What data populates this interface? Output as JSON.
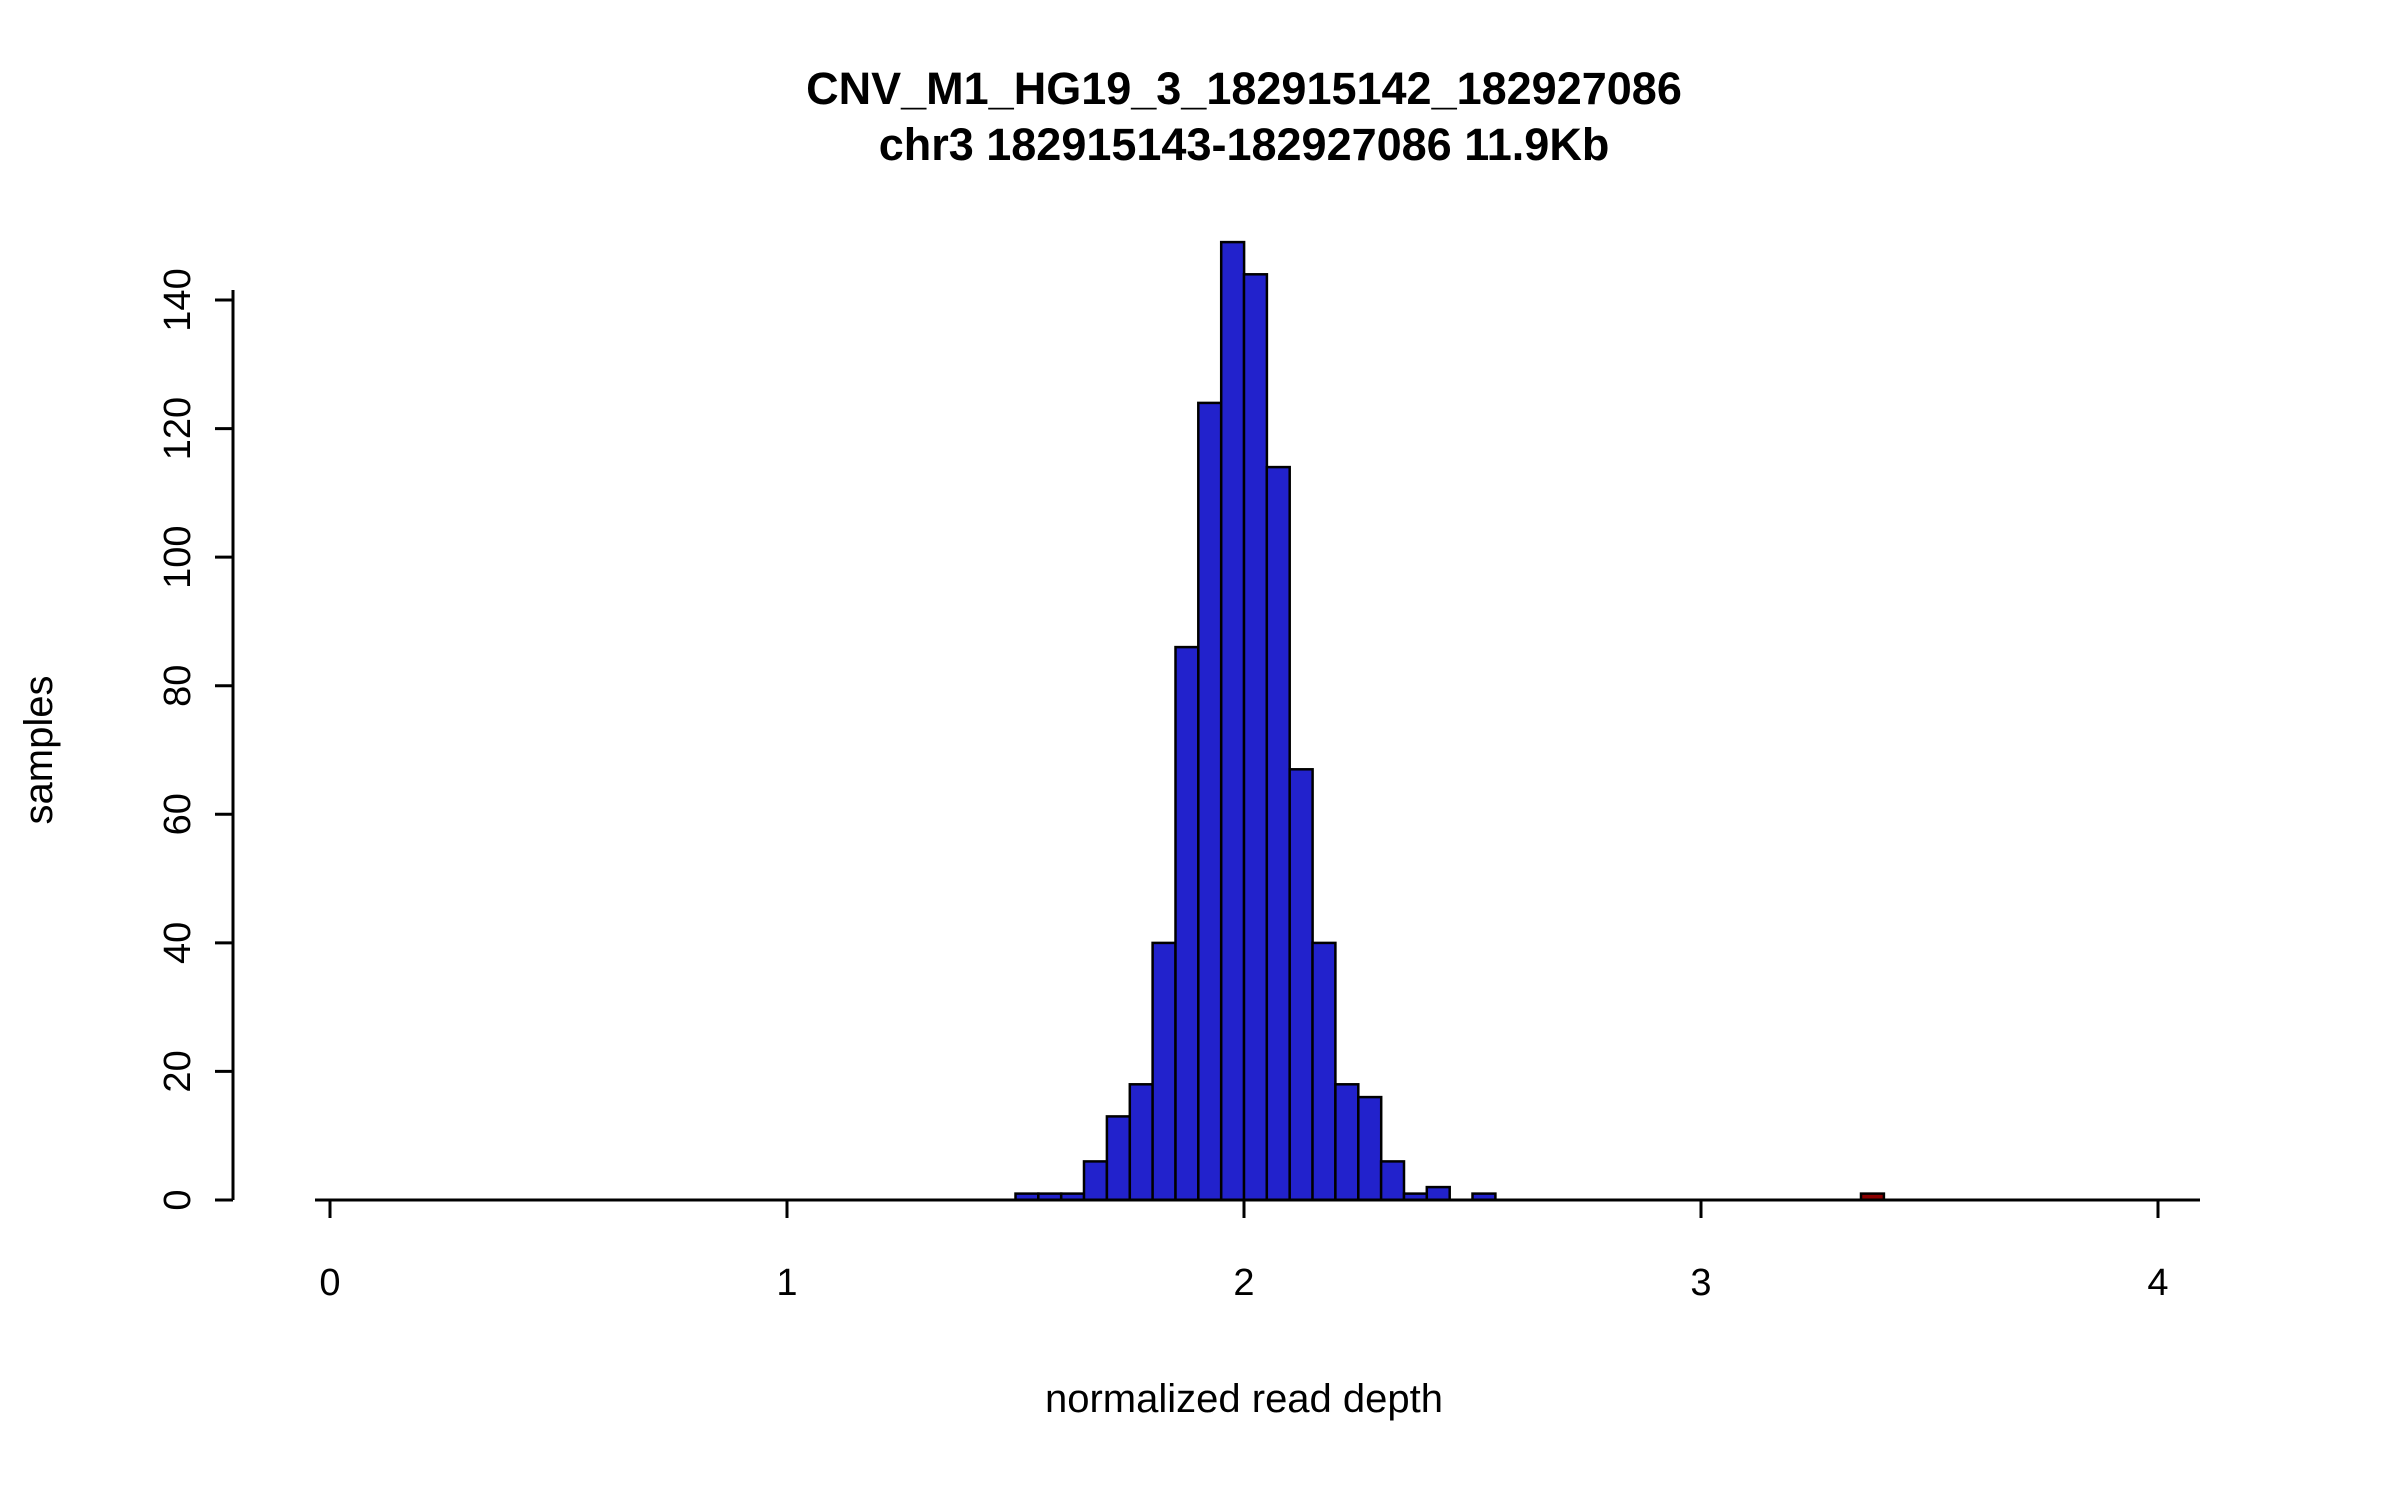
{
  "chart_data": {
    "type": "bar",
    "subtype": "histogram",
    "title": "CNV_M1_HG19_3_182915142_182927086",
    "subtitle": "chr3 182915143-182927086 11.9Kb",
    "xlabel": "normalized read depth",
    "ylabel": "samples",
    "xlim": [
      0,
      4.1
    ],
    "ylim": [
      0,
      150
    ],
    "x_ticks": [
      0,
      1,
      2,
      3,
      4
    ],
    "y_ticks": [
      0,
      20,
      40,
      60,
      80,
      100,
      120,
      140
    ],
    "bin_width": 0.05,
    "grid": false,
    "legend": "none",
    "colors": {
      "bar_fill": "#2222cc",
      "outlier_fill": "#8b0000",
      "bar_stroke": "#000000",
      "background": "#ffffff"
    },
    "bins": [
      {
        "start": 1.5,
        "count": 1,
        "series": "normal"
      },
      {
        "start": 1.55,
        "count": 1,
        "series": "normal"
      },
      {
        "start": 1.6,
        "count": 1,
        "series": "normal"
      },
      {
        "start": 1.65,
        "count": 6,
        "series": "normal"
      },
      {
        "start": 1.7,
        "count": 13,
        "series": "normal"
      },
      {
        "start": 1.75,
        "count": 18,
        "series": "normal"
      },
      {
        "start": 1.8,
        "count": 40,
        "series": "normal"
      },
      {
        "start": 1.85,
        "count": 86,
        "series": "normal"
      },
      {
        "start": 1.9,
        "count": 124,
        "series": "normal"
      },
      {
        "start": 1.95,
        "count": 149,
        "series": "normal"
      },
      {
        "start": 2.0,
        "count": 144,
        "series": "normal"
      },
      {
        "start": 2.05,
        "count": 114,
        "series": "normal"
      },
      {
        "start": 2.1,
        "count": 67,
        "series": "normal"
      },
      {
        "start": 2.15,
        "count": 40,
        "series": "normal"
      },
      {
        "start": 2.2,
        "count": 18,
        "series": "normal"
      },
      {
        "start": 2.25,
        "count": 16,
        "series": "normal"
      },
      {
        "start": 2.3,
        "count": 6,
        "series": "normal"
      },
      {
        "start": 2.35,
        "count": 1,
        "series": "normal"
      },
      {
        "start": 2.4,
        "count": 2,
        "series": "normal"
      },
      {
        "start": 2.5,
        "count": 1,
        "series": "normal"
      },
      {
        "start": 3.35,
        "count": 1,
        "series": "outlier"
      }
    ]
  }
}
